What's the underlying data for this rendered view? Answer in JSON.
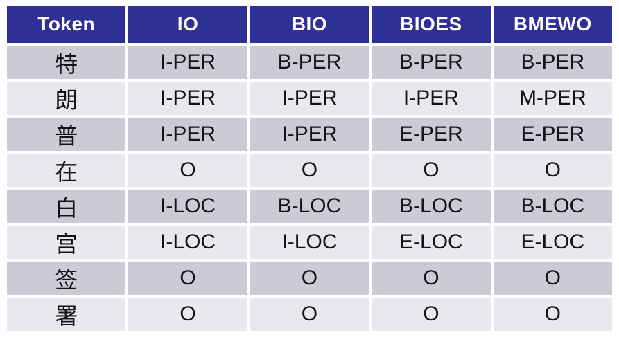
{
  "table": {
    "columns": [
      "Token",
      "IO",
      "BIO",
      "BIOES",
      "BMEWO"
    ],
    "rows": [
      {
        "token": "特",
        "tags": [
          "I-PER",
          "B-PER",
          "B-PER",
          "B-PER"
        ]
      },
      {
        "token": "朗",
        "tags": [
          "I-PER",
          "I-PER",
          "I-PER",
          "M-PER"
        ]
      },
      {
        "token": "普",
        "tags": [
          "I-PER",
          "I-PER",
          "E-PER",
          "E-PER"
        ]
      },
      {
        "token": "在",
        "tags": [
          "O",
          "O",
          "O",
          "O"
        ]
      },
      {
        "token": "白",
        "tags": [
          "I-LOC",
          "B-LOC",
          "B-LOC",
          "B-LOC"
        ]
      },
      {
        "token": "宫",
        "tags": [
          "I-LOC",
          "I-LOC",
          "E-LOC",
          "E-LOC"
        ]
      },
      {
        "token": "签",
        "tags": [
          "O",
          "O",
          "O",
          "O"
        ]
      },
      {
        "token": "署",
        "tags": [
          "O",
          "O",
          "O",
          "O"
        ]
      }
    ]
  },
  "colors": {
    "header_bg": "#2F3096",
    "header_text": "#FFFFFF",
    "row_dark": "#CBCBD5",
    "row_light": "#E8E8EF",
    "cell_text": "#131313",
    "page_bg": "#FFFFFF"
  }
}
